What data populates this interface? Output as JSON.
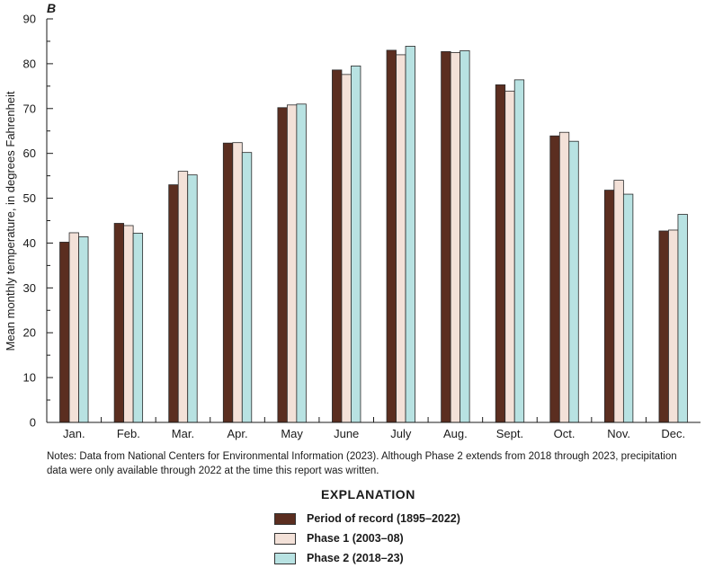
{
  "chart_data": {
    "type": "bar",
    "panel_label": "B",
    "ylabel": "Mean monthly temperature, in degrees Fahrenheit",
    "xlabel": "",
    "ylim": [
      0,
      90
    ],
    "yticks": [
      "0",
      "10",
      "20",
      "30",
      "40",
      "50",
      "60",
      "70",
      "80",
      "90"
    ],
    "categories": [
      "Jan.",
      "Feb.",
      "Mar.",
      "Apr.",
      "May",
      "June",
      "July",
      "Aug.",
      "Sept.",
      "Oct.",
      "Nov.",
      "Dec."
    ],
    "series": [
      {
        "name": "Period of record (1895–2022)",
        "color": "#5b2e20",
        "values": [
          40.2,
          44.4,
          53.0,
          62.3,
          70.2,
          78.6,
          83.0,
          82.7,
          75.3,
          63.9,
          51.8,
          42.7
        ]
      },
      {
        "name": "Phase 1 (2003–08)",
        "color": "#f3e1d8",
        "values": [
          42.3,
          43.9,
          56.0,
          62.4,
          70.8,
          77.6,
          82.0,
          82.5,
          73.9,
          64.7,
          54.0,
          42.9
        ]
      },
      {
        "name": "Phase 2 (2018–23)",
        "color": "#b8e2e2",
        "values": [
          41.4,
          42.2,
          55.2,
          60.2,
          71.0,
          79.5,
          83.9,
          82.9,
          76.4,
          62.7,
          50.9,
          46.4
        ]
      }
    ],
    "grid": false,
    "legend_position": "bottom"
  },
  "notes": "Notes: Data from National Centers for Environmental Information (2023). Although Phase 2 extends from 2018 through 2023, precipitation data were only available through 2022 at the time this report was written.",
  "legend": {
    "title": "EXPLANATION",
    "items": [
      "Period of record (1895–2022)",
      "Phase 1 (2003–08)",
      "Phase 2 (2018–23)"
    ]
  }
}
